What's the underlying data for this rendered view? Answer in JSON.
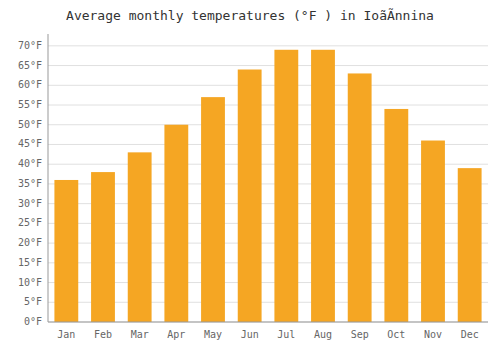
{
  "chart_data": {
    "type": "bar",
    "title": "Average monthly temperatures (°F ) in IoãÃnnina",
    "categories": [
      "Jan",
      "Feb",
      "Mar",
      "Apr",
      "May",
      "Jun",
      "Jul",
      "Aug",
      "Sep",
      "Oct",
      "Nov",
      "Dec"
    ],
    "values": [
      36,
      38,
      43,
      50,
      57,
      64,
      69,
      69,
      63,
      54,
      46,
      39
    ],
    "color": "#F5A623",
    "ylim": [
      0,
      73
    ],
    "yticks": [
      {
        "value": 0,
        "label": "0°F"
      },
      {
        "value": 5,
        "label": "5°F"
      },
      {
        "value": 10,
        "label": "10°F"
      },
      {
        "value": 15,
        "label": "15°F"
      },
      {
        "value": 20,
        "label": "20°F"
      },
      {
        "value": 25,
        "label": "25°F"
      },
      {
        "value": 30,
        "label": "30°F"
      },
      {
        "value": 35,
        "label": "35°F"
      },
      {
        "value": 40,
        "label": "40°F"
      },
      {
        "value": 45,
        "label": "45°F"
      },
      {
        "value": 50,
        "label": "50°F"
      },
      {
        "value": 55,
        "label": "55°F"
      },
      {
        "value": 60,
        "label": "60°F"
      },
      {
        "value": 65,
        "label": "65°F"
      },
      {
        "value": 70,
        "label": "70°F"
      }
    ],
    "grid": true
  }
}
